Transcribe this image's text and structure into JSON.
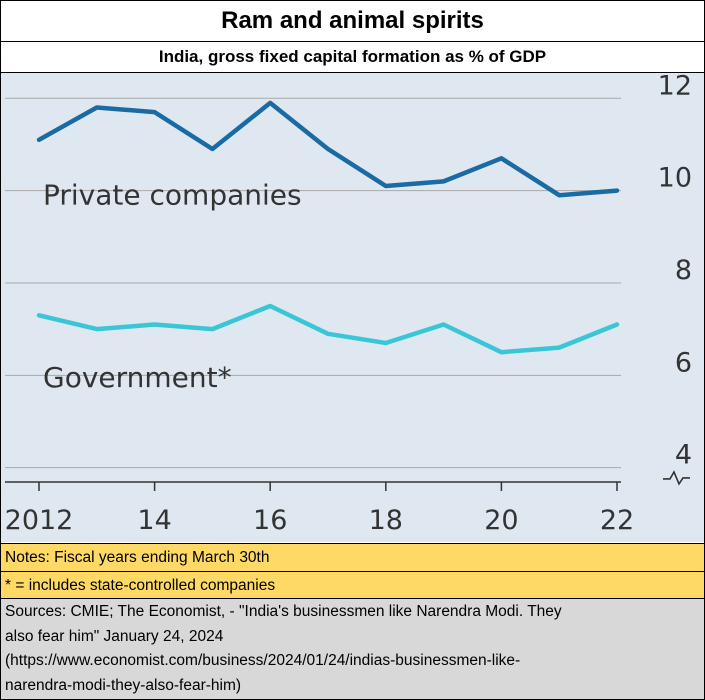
{
  "title": "Ram and animal spirits",
  "subtitle": "India, gross fixed capital formation as % of GDP",
  "chart_data": {
    "type": "line",
    "x": [
      2012,
      2013,
      2014,
      2015,
      2016,
      2017,
      2018,
      2019,
      2020,
      2021,
      2022
    ],
    "x_tick_values": [
      2012,
      2014,
      2016,
      2018,
      2020,
      2022
    ],
    "x_tick_labels": [
      "2012",
      "14",
      "16",
      "18",
      "20",
      "22"
    ],
    "y_ticks": [
      12,
      10,
      8,
      6,
      4
    ],
    "ylim": [
      3.3,
      12.2
    ],
    "axis_break": true,
    "grid": true,
    "series": [
      {
        "name": "Private companies",
        "color": "#1a6aa3",
        "values": [
          11.1,
          11.8,
          11.7,
          10.9,
          11.9,
          10.9,
          10.1,
          10.2,
          10.7,
          9.9,
          10.0
        ]
      },
      {
        "name": "Government*",
        "color": "#3bc6d8",
        "values": [
          7.3,
          7.0,
          7.1,
          7.0,
          7.5,
          6.9,
          6.7,
          7.1,
          6.5,
          6.6,
          7.1
        ]
      }
    ],
    "labels": {
      "private": "Private companies",
      "government": "Government*"
    }
  },
  "notes": {
    "fiscal": "Notes: Fiscal years ending March 30th",
    "star": "* = includes state-controlled companies"
  },
  "sources": {
    "line1": "Sources: CMIE; The Economist, - \"India's businessmen like Narendra Modi. They",
    "line2": "also fear him\"   January 24, 2024",
    "line3": "(https://www.economist.com/business/2024/01/24/indias-businessmen-like-",
    "line4": "narendra-modi-they-also-fear-him)"
  }
}
